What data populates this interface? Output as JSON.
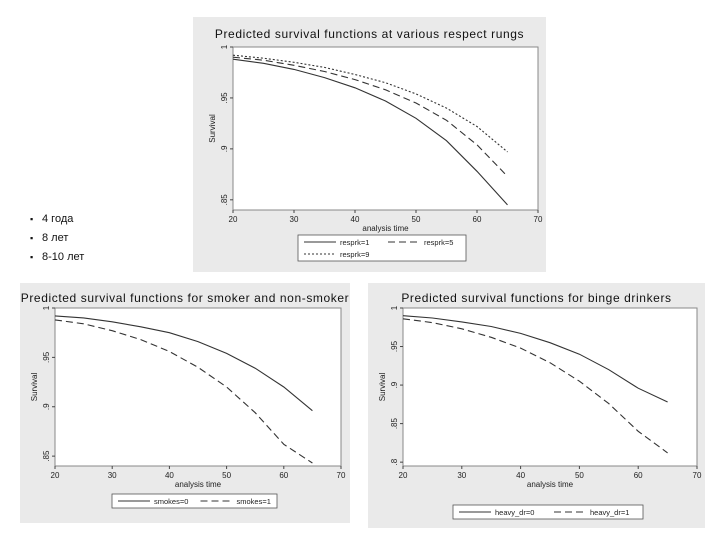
{
  "bullets": [
    "4 года",
    "8 лет",
    "8-10 лет"
  ],
  "chart_data": [
    {
      "type": "line",
      "title": "Predicted survival functions at various respect rungs",
      "xlabel": "analysis time",
      "ylabel": "Survival",
      "xlim": [
        20,
        70
      ],
      "ylim": [
        0.84,
        1.0
      ],
      "xticks": [
        20,
        30,
        40,
        50,
        60,
        70
      ],
      "xtick_labels": [
        "20",
        "30",
        "40",
        "50",
        "60",
        "70"
      ],
      "yticks": [
        0.85,
        0.9,
        0.95,
        1.0
      ],
      "ytick_labels": [
        ".85",
        ".9",
        ".95",
        "1"
      ],
      "legend_rows": 2,
      "series": [
        {
          "name": "resprk=1",
          "style": "solid",
          "x": [
            20,
            25,
            30,
            35,
            40,
            45,
            50,
            55,
            60,
            65
          ],
          "y": [
            0.988,
            0.984,
            0.978,
            0.97,
            0.96,
            0.947,
            0.93,
            0.908,
            0.878,
            0.845
          ]
        },
        {
          "name": "resprk=5",
          "style": "dashed",
          "x": [
            20,
            25,
            30,
            35,
            40,
            45,
            50,
            55,
            60,
            65
          ],
          "y": [
            0.99,
            0.987,
            0.982,
            0.976,
            0.968,
            0.958,
            0.945,
            0.928,
            0.904,
            0.873
          ]
        },
        {
          "name": "resprk=9",
          "style": "dotted",
          "x": [
            20,
            25,
            30,
            35,
            40,
            45,
            50,
            55,
            60,
            65
          ],
          "y": [
            0.992,
            0.989,
            0.985,
            0.98,
            0.973,
            0.965,
            0.954,
            0.94,
            0.922,
            0.897
          ]
        }
      ]
    },
    {
      "type": "line",
      "title": "Predicted survival functions for smoker and non-smoker",
      "xlabel": "analysis time",
      "ylabel": "Survival",
      "xlim": [
        20,
        70
      ],
      "ylim": [
        0.84,
        1.0
      ],
      "xticks": [
        20,
        30,
        40,
        50,
        60,
        70
      ],
      "xtick_labels": [
        "20",
        "30",
        "40",
        "50",
        "60",
        "70"
      ],
      "yticks": [
        0.85,
        0.9,
        0.95,
        1.0
      ],
      "ytick_labels": [
        ".85",
        ".9",
        ".95",
        "1"
      ],
      "legend_rows": 1,
      "series": [
        {
          "name": "smokes=0",
          "style": "solid",
          "x": [
            20,
            25,
            30,
            35,
            40,
            45,
            50,
            55,
            60,
            65
          ],
          "y": [
            0.992,
            0.99,
            0.986,
            0.981,
            0.975,
            0.966,
            0.954,
            0.939,
            0.92,
            0.896
          ]
        },
        {
          "name": "smokes=1",
          "style": "dashed",
          "x": [
            20,
            25,
            30,
            35,
            40,
            45,
            50,
            55,
            60,
            65
          ],
          "y": [
            0.988,
            0.984,
            0.977,
            0.968,
            0.956,
            0.94,
            0.92,
            0.894,
            0.862,
            0.843
          ]
        }
      ]
    },
    {
      "type": "line",
      "title": "Predicted survival functions for binge drinkers",
      "xlabel": "analysis time",
      "ylabel": "Survival",
      "xlim": [
        20,
        70
      ],
      "ylim": [
        0.795,
        1.0
      ],
      "xticks": [
        20,
        30,
        40,
        50,
        60,
        70
      ],
      "xtick_labels": [
        "20",
        "30",
        "40",
        "50",
        "60",
        "70"
      ],
      "yticks": [
        0.8,
        0.85,
        0.9,
        0.95,
        1.0
      ],
      "ytick_labels": [
        ".8",
        ".85",
        ".9",
        ".95",
        "1"
      ],
      "legend_rows": 1,
      "series": [
        {
          "name": "heavy_dr=0",
          "style": "solid",
          "x": [
            20,
            25,
            30,
            35,
            40,
            45,
            50,
            55,
            60,
            65
          ],
          "y": [
            0.99,
            0.987,
            0.982,
            0.976,
            0.967,
            0.955,
            0.94,
            0.92,
            0.896,
            0.878
          ]
        },
        {
          "name": "heavy_dr=1",
          "style": "dashed",
          "x": [
            20,
            25,
            30,
            35,
            40,
            45,
            50,
            55,
            60,
            65
          ],
          "y": [
            0.986,
            0.981,
            0.973,
            0.962,
            0.948,
            0.929,
            0.905,
            0.876,
            0.84,
            0.812
          ]
        }
      ]
    }
  ]
}
